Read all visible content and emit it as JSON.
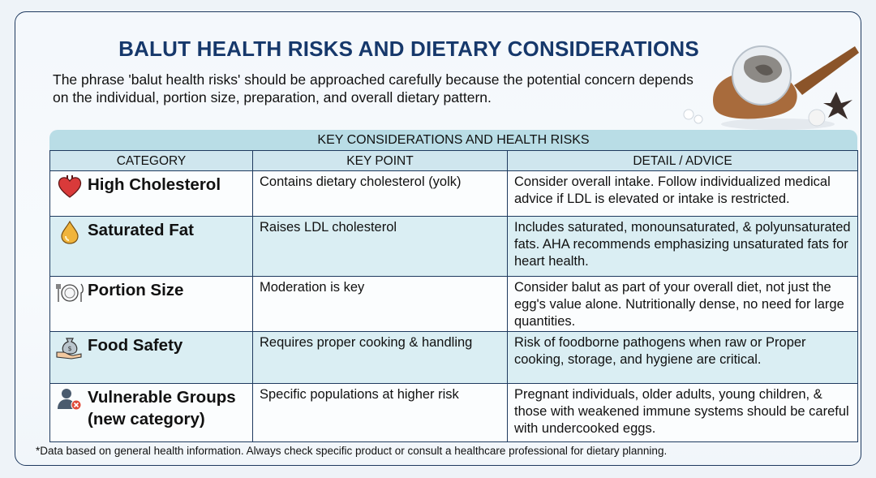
{
  "title": "BALUT HEALTH RISKS AND DIETARY CONSIDERATIONS",
  "intro": "The phrase 'balut health risks' should be approached carefully because the potential concern depends on the individual, portion size, preparation, and overall dietary pattern.",
  "table": {
    "heading": "KEY CONSIDERATIONS AND HEALTH RISKS",
    "columns": [
      "CATEGORY",
      "KEY POINT",
      "DETAIL / ADVICE"
    ],
    "rows": [
      {
        "icon": "heart-icon",
        "category": "High Cholesterol",
        "key_point": "Contains dietary cholesterol (yolk)",
        "detail": "Consider overall intake. Follow individualized medical advice if LDL is elevated or intake is restricted."
      },
      {
        "icon": "oil-drop-icon",
        "category": "Saturated Fat",
        "key_point": "Raises LDL cholesterol",
        "detail": "Includes saturated, monounsaturated, & polyunsaturated fats. AHA recommends emphasizing unsaturated fats for heart health."
      },
      {
        "icon": "plate-utensils-icon",
        "category": "Portion Size",
        "key_point": "Moderation is key",
        "detail": "Consider balut as part of your overall diet, not just the egg's value alone. Nutritionally dense, no need for large quantities."
      },
      {
        "icon": "food-safety-icon",
        "category": "Food Safety",
        "key_point": "Requires proper cooking & handling",
        "detail": "Risk of foodborne pathogens when raw or Proper cooking, storage, and hygiene are critical."
      },
      {
        "icon": "person-alert-icon",
        "category": "Vulnerable Groups (new category)",
        "key_point": "Specific populations at higher risk",
        "detail": "Pregnant individuals, older adults, young children, & those with weakened immune systems should be careful with undercooked eggs."
      }
    ]
  },
  "footnote": "*Data based on general health information. Always check specific product or consult a healthcare professional for dietary planning.",
  "colors": {
    "title": "#16386b",
    "border": "#1f3a5f",
    "header_fill": "#b9dde6",
    "alt_row": "#daeef3"
  }
}
